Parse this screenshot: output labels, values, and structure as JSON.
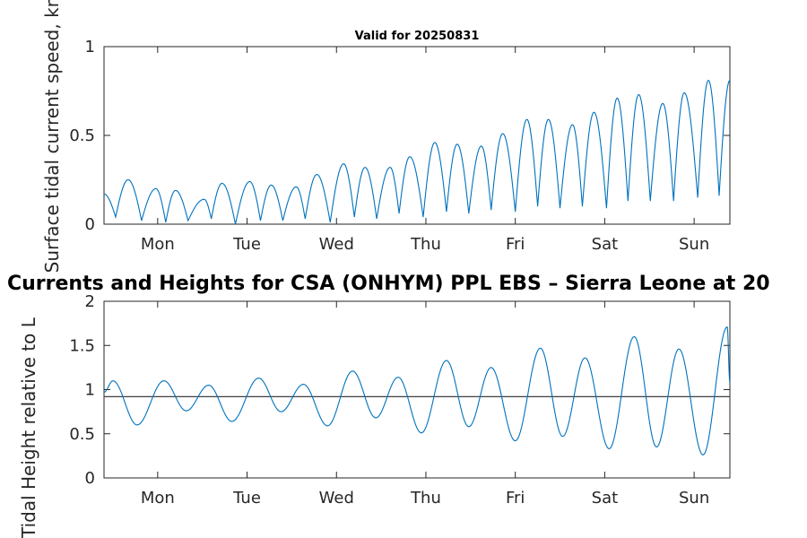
{
  "figure": {
    "main_title": "Currents and Heights for CSA (ONHYM) PPL EBS  – Sierra Leone at 20",
    "subtitle": "Valid for 20250831"
  },
  "chart_data": [
    {
      "type": "line",
      "title": "Valid for 20250831",
      "ylabel": "Surface tidal current speed, kn",
      "xlabel": "",
      "categories": [
        "Mon",
        "Tue",
        "Wed",
        "Thu",
        "Fri",
        "Sat",
        "Sun"
      ],
      "xlim": [
        0,
        7
      ],
      "ylim": [
        0,
        1
      ],
      "yticks": [
        0,
        0.5,
        1
      ],
      "ytick_labels": [
        "0",
        "0.5",
        "1"
      ],
      "grid": false,
      "line_color": "#0072bd",
      "peaks": [
        {
          "x": 0.0,
          "y": 0.17
        },
        {
          "x": 0.27,
          "y": 0.25
        },
        {
          "x": 0.58,
          "y": 0.2
        },
        {
          "x": 0.8,
          "y": 0.19
        },
        {
          "x": 1.12,
          "y": 0.14
        },
        {
          "x": 1.32,
          "y": 0.23
        },
        {
          "x": 1.63,
          "y": 0.24
        },
        {
          "x": 1.87,
          "y": 0.22
        },
        {
          "x": 2.15,
          "y": 0.21
        },
        {
          "x": 2.38,
          "y": 0.28
        },
        {
          "x": 2.68,
          "y": 0.34
        },
        {
          "x": 2.92,
          "y": 0.32
        },
        {
          "x": 3.2,
          "y": 0.32
        },
        {
          "x": 3.42,
          "y": 0.38
        },
        {
          "x": 3.7,
          "y": 0.46
        },
        {
          "x": 3.95,
          "y": 0.45
        },
        {
          "x": 4.22,
          "y": 0.44
        },
        {
          "x": 4.46,
          "y": 0.51
        },
        {
          "x": 4.73,
          "y": 0.59
        },
        {
          "x": 4.97,
          "y": 0.59
        },
        {
          "x": 5.24,
          "y": 0.56
        },
        {
          "x": 5.48,
          "y": 0.63
        },
        {
          "x": 5.74,
          "y": 0.71
        },
        {
          "x": 5.98,
          "y": 0.73
        },
        {
          "x": 6.25,
          "y": 0.68
        },
        {
          "x": 6.49,
          "y": 0.74
        },
        {
          "x": 6.76,
          "y": 0.81
        },
        {
          "x": 7.0,
          "y": 0.81
        }
      ],
      "troughs": [
        {
          "x": 0.13,
          "y": 0.04
        },
        {
          "x": 0.42,
          "y": 0.02
        },
        {
          "x": 0.69,
          "y": 0.01
        },
        {
          "x": 0.94,
          "y": 0.02
        },
        {
          "x": 1.2,
          "y": 0.03
        },
        {
          "x": 1.47,
          "y": 0.0
        },
        {
          "x": 1.75,
          "y": 0.02
        },
        {
          "x": 2.0,
          "y": 0.02
        },
        {
          "x": 2.25,
          "y": 0.03
        },
        {
          "x": 2.53,
          "y": 0.01
        },
        {
          "x": 2.8,
          "y": 0.04
        },
        {
          "x": 3.05,
          "y": 0.03
        },
        {
          "x": 3.3,
          "y": 0.06
        },
        {
          "x": 3.57,
          "y": 0.04
        },
        {
          "x": 3.83,
          "y": 0.07
        },
        {
          "x": 4.08,
          "y": 0.06
        },
        {
          "x": 4.33,
          "y": 0.08
        },
        {
          "x": 4.6,
          "y": 0.07
        },
        {
          "x": 4.85,
          "y": 0.1
        },
        {
          "x": 5.1,
          "y": 0.09
        },
        {
          "x": 5.35,
          "y": 0.1
        },
        {
          "x": 5.62,
          "y": 0.09
        },
        {
          "x": 5.86,
          "y": 0.13
        },
        {
          "x": 6.11,
          "y": 0.13
        },
        {
          "x": 6.37,
          "y": 0.13
        },
        {
          "x": 6.64,
          "y": 0.15
        },
        {
          "x": 6.88,
          "y": 0.16
        }
      ]
    },
    {
      "type": "line",
      "title": "",
      "ylabel": "Tidal Height relative to L",
      "xlabel": "",
      "categories": [
        "Mon",
        "Tue",
        "Wed",
        "Thu",
        "Fri",
        "Sat",
        "Sun"
      ],
      "xlim": [
        0,
        7
      ],
      "ylim": [
        0,
        2
      ],
      "yticks": [
        0,
        0.5,
        1,
        1.5,
        2
      ],
      "ytick_labels": [
        "0",
        "0.5",
        "1",
        "1.5",
        "2"
      ],
      "grid": false,
      "line_color": "#0072bd",
      "reference_line": {
        "y": 0.92,
        "color": "#404040"
      },
      "extrema": [
        {
          "x": 0.0,
          "y": 0.97
        },
        {
          "x": 0.1,
          "y": 1.1
        },
        {
          "x": 0.37,
          "y": 0.6
        },
        {
          "x": 0.67,
          "y": 1.1
        },
        {
          "x": 0.92,
          "y": 0.76
        },
        {
          "x": 1.17,
          "y": 1.05
        },
        {
          "x": 1.43,
          "y": 0.64
        },
        {
          "x": 1.73,
          "y": 1.13
        },
        {
          "x": 1.98,
          "y": 0.75
        },
        {
          "x": 2.23,
          "y": 1.06
        },
        {
          "x": 2.5,
          "y": 0.59
        },
        {
          "x": 2.78,
          "y": 1.21
        },
        {
          "x": 3.04,
          "y": 0.68
        },
        {
          "x": 3.29,
          "y": 1.14
        },
        {
          "x": 3.55,
          "y": 0.51
        },
        {
          "x": 3.83,
          "y": 1.33
        },
        {
          "x": 4.08,
          "y": 0.58
        },
        {
          "x": 4.33,
          "y": 1.25
        },
        {
          "x": 4.6,
          "y": 0.42
        },
        {
          "x": 4.88,
          "y": 1.47
        },
        {
          "x": 5.13,
          "y": 0.47
        },
        {
          "x": 5.38,
          "y": 1.36
        },
        {
          "x": 5.65,
          "y": 0.33
        },
        {
          "x": 5.93,
          "y": 1.6
        },
        {
          "x": 6.18,
          "y": 0.35
        },
        {
          "x": 6.43,
          "y": 1.46
        },
        {
          "x": 6.7,
          "y": 0.26
        },
        {
          "x": 6.97,
          "y": 1.71
        },
        {
          "x": 7.0,
          "y": 1.08
        }
      ]
    }
  ]
}
